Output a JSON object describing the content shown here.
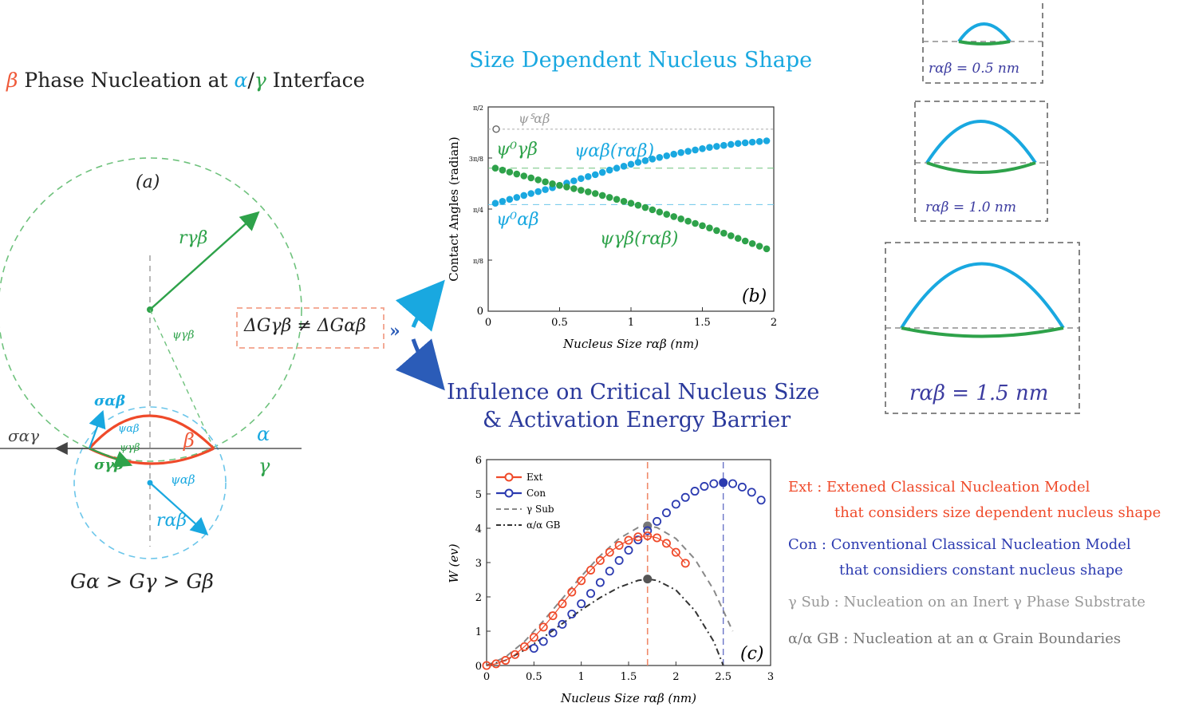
{
  "panel_a": {
    "title_beta": "β",
    "title_mid": " Phase Nucleation at ",
    "title_alpha": "α",
    "title_slash": "/",
    "title_gamma": "γ",
    "title_end": " Interface",
    "label": "(a)",
    "r_gamma_beta": "rγβ",
    "psi_gamma_beta": "ψγβ",
    "sigma_alpha_beta": "σαβ",
    "sigma_alpha_gamma": "σαγ",
    "sigma_gamma_beta": "σγβ",
    "psi_alpha_beta": "ψαβ",
    "psi_gamma_beta_small": "ψγβ",
    "psi_alpha_beta_below": "ψαβ",
    "r_alpha_beta": "rαβ",
    "beta": "β",
    "alpha": "α",
    "gamma": "γ",
    "energy_order": "Gα > Gγ > Gβ",
    "delta_g": "ΔGγβ ≠ ΔGαβ"
  },
  "panel_b": {
    "title": "Size Dependent Nucleus Shape",
    "label": "(b)",
    "curve1_label": "ψαβ(rαβ)",
    "curve2_label": "ψγβ(rαβ)",
    "psi0_gb": "ψ⁰γβ",
    "psi0_ab": "ψ⁰αβ",
    "psiS_label": "ψᔆαβ"
  },
  "panel_c": {
    "title_line1": "Infulence on Critical Nucleus Size",
    "title_line2": "& Activation Energy Barrier",
    "label": "(c)"
  },
  "shape_boxes": [
    {
      "label": "rαβ = 0.5 nm"
    },
    {
      "label": "rαβ = 1.0 nm"
    },
    {
      "label": "rαβ = 1.5 nm"
    }
  ],
  "legend_descriptions": {
    "ext_key": "Ext :",
    "ext_line1": "Extened Classical Nucleation Model",
    "ext_line2": "that considers size dependent nucleus shape",
    "con_key": "Con :",
    "con_line1": "Conventional Classical Nucleation Model",
    "con_line2": "that considiers constant nucleus shape",
    "gsub_key": "γ Sub :",
    "gsub_line": "Nucleation on an Inert γ Phase Substrate",
    "gb_key": "α/α GB :",
    "gb_line": "Nucleation at an α Grain Boundaries"
  },
  "colors": {
    "ext": "#ef4a2a",
    "con": "#2b3ab0",
    "gsub": "#888888",
    "gb": "#333333",
    "psi_ab": "#19a8e0",
    "psi_gb": "#2ea24a"
  },
  "chart_data": [
    {
      "type": "scatter",
      "xlabel": "Nucleus Size rαβ (nm)",
      "ylabel": "Contact Angles (radian)",
      "xlim": [
        0,
        2
      ],
      "ylim": [
        0,
        1.5708
      ],
      "xticks": [
        "0",
        "0.5",
        "1",
        "1.5",
        "2"
      ],
      "yticks": [
        "0",
        "π/8",
        "π/4",
        "3π/8",
        "π/2"
      ],
      "series": [
        {
          "name": "ψαβ(rαβ)",
          "x": [
            0.05,
            0.15,
            0.25,
            0.35,
            0.45,
            0.55,
            0.65,
            0.75,
            0.85,
            0.95,
            1.05,
            1.15,
            1.25,
            1.35,
            1.45,
            1.55,
            1.65,
            1.75,
            1.85,
            1.95
          ],
          "y": [
            0.83,
            0.86,
            0.89,
            0.92,
            0.95,
            0.985,
            1.02,
            1.05,
            1.085,
            1.115,
            1.145,
            1.17,
            1.195,
            1.22,
            1.24,
            1.26,
            1.275,
            1.29,
            1.3,
            1.31
          ]
        },
        {
          "name": "ψγβ(rαβ)",
          "x": [
            0.05,
            0.15,
            0.25,
            0.35,
            0.45,
            0.55,
            0.65,
            0.75,
            0.85,
            0.95,
            1.05,
            1.15,
            1.25,
            1.35,
            1.45,
            1.55,
            1.65,
            1.75,
            1.85,
            1.95
          ],
          "y": [
            1.1,
            1.07,
            1.04,
            1.01,
            0.98,
            0.955,
            0.93,
            0.905,
            0.875,
            0.845,
            0.815,
            0.78,
            0.745,
            0.71,
            0.675,
            0.64,
            0.6,
            0.56,
            0.52,
            0.48
          ]
        }
      ],
      "reference_lines": {
        "psi0_gb": 1.1,
        "psi0_ab": 0.82,
        "psiS": 1.4
      }
    },
    {
      "type": "line",
      "xlabel": "Nucleus Size rαβ (nm)",
      "ylabel": "W (ev)",
      "xlim": [
        0,
        3
      ],
      "ylim": [
        0,
        6
      ],
      "xticks": [
        "0",
        "0.5",
        "1",
        "1.5",
        "2",
        "2.5",
        "3"
      ],
      "yticks": [
        "0",
        "1",
        "2",
        "3",
        "4",
        "5",
        "6"
      ],
      "series": [
        {
          "name": "Ext",
          "x": [
            0,
            0.1,
            0.2,
            0.3,
            0.4,
            0.5,
            0.6,
            0.7,
            0.8,
            0.9,
            1.0,
            1.1,
            1.2,
            1.3,
            1.4,
            1.5,
            1.6,
            1.7,
            1.8,
            1.9,
            2.0,
            2.1
          ],
          "y": [
            0,
            0.05,
            0.15,
            0.32,
            0.55,
            0.82,
            1.12,
            1.45,
            1.8,
            2.14,
            2.47,
            2.78,
            3.06,
            3.3,
            3.5,
            3.65,
            3.75,
            3.78,
            3.72,
            3.56,
            3.3,
            2.98
          ]
        },
        {
          "name": "Con",
          "x": [
            0.5,
            0.6,
            0.7,
            0.8,
            0.9,
            1.0,
            1.1,
            1.2,
            1.3,
            1.4,
            1.5,
            1.6,
            1.7,
            1.8,
            1.9,
            2.0,
            2.1,
            2.2,
            2.3,
            2.4,
            2.5,
            2.6,
            2.7,
            2.8,
            2.9
          ],
          "y": [
            0.5,
            0.7,
            0.95,
            1.2,
            1.5,
            1.8,
            2.1,
            2.42,
            2.75,
            3.06,
            3.36,
            3.66,
            3.93,
            4.2,
            4.45,
            4.7,
            4.9,
            5.08,
            5.22,
            5.3,
            5.33,
            5.3,
            5.2,
            5.05,
            4.82
          ]
        },
        {
          "name": "γ Sub",
          "x": [
            0,
            0.2,
            0.4,
            0.6,
            0.8,
            1.0,
            1.2,
            1.4,
            1.6,
            1.7,
            1.8,
            2.0,
            2.2,
            2.4,
            2.6
          ],
          "y": [
            0,
            0.25,
            0.7,
            1.3,
            1.95,
            2.6,
            3.2,
            3.7,
            4.02,
            4.07,
            4.02,
            3.7,
            3.1,
            2.2,
            1.0
          ]
        },
        {
          "name": "α/α GB",
          "x": [
            0,
            0.2,
            0.4,
            0.6,
            0.8,
            1.0,
            1.2,
            1.4,
            1.6,
            1.7,
            1.8,
            2.0,
            2.2,
            2.4,
            2.5
          ],
          "y": [
            0,
            0.15,
            0.45,
            0.82,
            1.22,
            1.62,
            1.98,
            2.28,
            2.48,
            2.52,
            2.48,
            2.2,
            1.6,
            0.7,
            0.0
          ]
        }
      ],
      "critical_x": {
        "Ext": 1.7,
        "Con": 2.5
      }
    }
  ]
}
